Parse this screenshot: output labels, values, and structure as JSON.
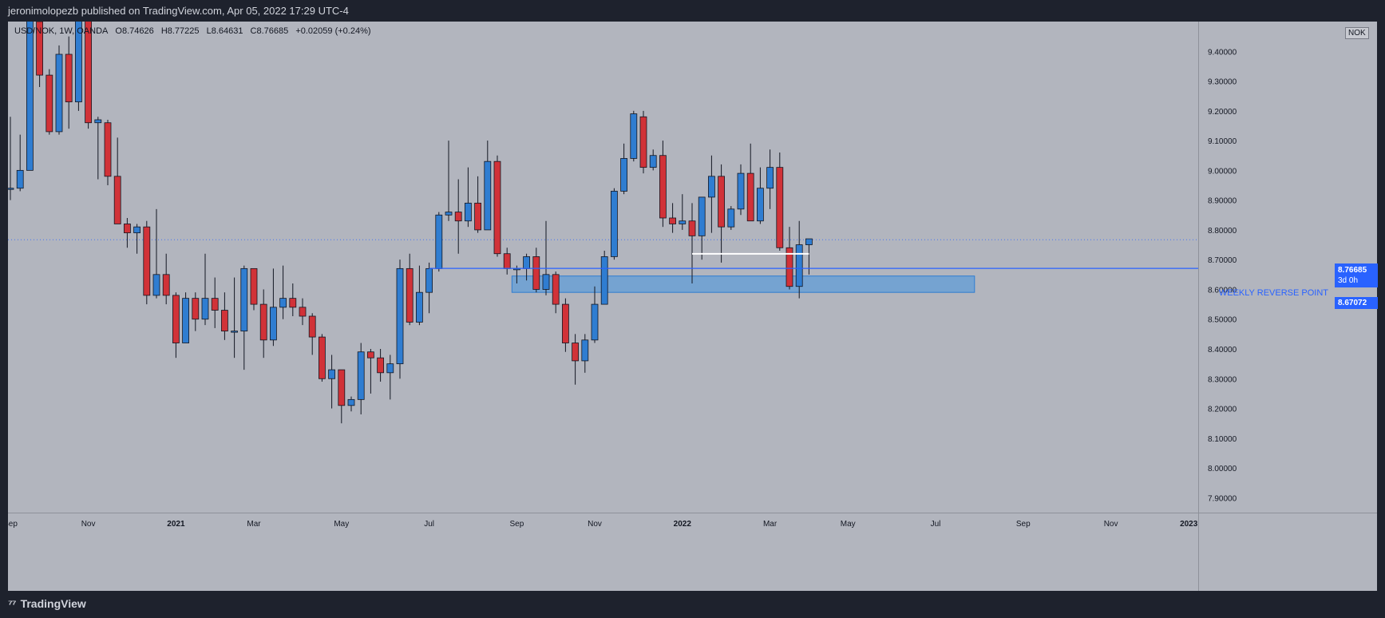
{
  "header": {
    "published_text": "jeronimolopezb published on TradingView.com, Apr 05, 2022 17:29 UTC-4"
  },
  "legend": {
    "symbol": "USD/NOK, 1W, OANDA",
    "open": "O8.74626",
    "high": "H8.77225",
    "low": "L8.64631",
    "close": "C8.76685",
    "change": "+0.02059 (+0.24%)"
  },
  "currency_badge": "NOK",
  "annotations": {
    "line_label": "WEEKLY REVERSE POINT",
    "line_price": "8.67072",
    "last_price": "8.76685",
    "countdown": "3d 0h"
  },
  "footer": {
    "brand": "TradingView"
  },
  "colors": {
    "background": "#b2b5be",
    "up": "#2f7dd1",
    "down": "#d13238",
    "line": "#2962ff",
    "zone": "#5b9bd8"
  },
  "chart_data": {
    "type": "candlestick",
    "symbol": "USD/NOK",
    "interval": "1W",
    "ylim": [
      7.85,
      9.5
    ],
    "y_ticks": [
      "9.40000",
      "9.30000",
      "9.20000",
      "9.10000",
      "9.00000",
      "8.90000",
      "8.80000",
      "8.70000",
      "8.60000",
      "8.50000",
      "8.40000",
      "8.30000",
      "8.20000",
      "8.10000",
      "8.00000",
      "7.90000"
    ],
    "x_ticks": [
      {
        "label": "Sep",
        "week": 0
      },
      {
        "label": "Nov",
        "week": 8
      },
      {
        "label": "2021",
        "week": 17
      },
      {
        "label": "Mar",
        "week": 25
      },
      {
        "label": "May",
        "week": 34
      },
      {
        "label": "Jul",
        "week": 43
      },
      {
        "label": "Sep",
        "week": 52
      },
      {
        "label": "Nov",
        "week": 60
      },
      {
        "label": "2022",
        "week": 69
      },
      {
        "label": "Mar",
        "week": 78
      },
      {
        "label": "May",
        "week": 86
      },
      {
        "label": "Jul",
        "week": 95
      },
      {
        "label": "Sep",
        "week": 104
      },
      {
        "label": "Nov",
        "week": 113
      },
      {
        "label": "2023",
        "week": 121
      }
    ],
    "candles": [
      [
        8.94,
        8.94,
        9.18,
        8.9
      ],
      [
        8.94,
        9.0,
        9.12,
        8.93
      ],
      [
        9.0,
        9.55,
        9.6,
        9.0
      ],
      [
        9.5,
        9.32,
        9.55,
        9.28
      ],
      [
        9.32,
        9.13,
        9.34,
        9.12
      ],
      [
        9.13,
        9.39,
        9.42,
        9.12
      ],
      [
        9.39,
        9.23,
        9.45,
        9.14
      ],
      [
        9.23,
        9.6,
        9.62,
        9.2
      ],
      [
        9.55,
        9.16,
        9.6,
        9.14
      ],
      [
        9.16,
        9.17,
        9.18,
        8.97
      ],
      [
        9.16,
        8.98,
        9.17,
        8.95
      ],
      [
        8.98,
        8.82,
        9.11,
        8.82
      ],
      [
        8.82,
        8.79,
        8.84,
        8.74
      ],
      [
        8.79,
        8.81,
        8.82,
        8.72
      ],
      [
        8.81,
        8.58,
        8.83,
        8.55
      ],
      [
        8.58,
        8.65,
        8.87,
        8.57
      ],
      [
        8.65,
        8.58,
        8.72,
        8.55
      ],
      [
        8.58,
        8.42,
        8.59,
        8.37
      ],
      [
        8.42,
        8.57,
        8.59,
        8.42
      ],
      [
        8.57,
        8.5,
        8.59,
        8.46
      ],
      [
        8.5,
        8.57,
        8.72,
        8.48
      ],
      [
        8.57,
        8.53,
        8.64,
        8.47
      ],
      [
        8.53,
        8.46,
        8.59,
        8.43
      ],
      [
        8.46,
        8.46,
        8.64,
        8.37
      ],
      [
        8.46,
        8.67,
        8.68,
        8.33
      ],
      [
        8.67,
        8.55,
        8.67,
        8.53
      ],
      [
        8.55,
        8.43,
        8.6,
        8.37
      ],
      [
        8.43,
        8.54,
        8.67,
        8.41
      ],
      [
        8.54,
        8.57,
        8.68,
        8.5
      ],
      [
        8.57,
        8.54,
        8.62,
        8.51
      ],
      [
        8.54,
        8.51,
        8.57,
        8.48
      ],
      [
        8.51,
        8.44,
        8.52,
        8.38
      ],
      [
        8.44,
        8.3,
        8.45,
        8.29
      ],
      [
        8.3,
        8.33,
        8.38,
        8.2
      ],
      [
        8.33,
        8.21,
        8.33,
        8.15
      ],
      [
        8.21,
        8.23,
        8.24,
        8.19
      ],
      [
        8.23,
        8.39,
        8.42,
        8.18
      ],
      [
        8.39,
        8.37,
        8.4,
        8.25
      ],
      [
        8.37,
        8.32,
        8.4,
        8.29
      ],
      [
        8.32,
        8.35,
        8.38,
        8.23
      ],
      [
        8.35,
        8.67,
        8.7,
        8.3
      ],
      [
        8.67,
        8.49,
        8.72,
        8.48
      ],
      [
        8.49,
        8.59,
        8.68,
        8.48
      ],
      [
        8.59,
        8.67,
        8.69,
        8.52
      ],
      [
        8.67,
        8.85,
        8.86,
        8.66
      ],
      [
        8.85,
        8.86,
        9.1,
        8.83
      ],
      [
        8.86,
        8.83,
        8.97,
        8.72
      ],
      [
        8.83,
        8.89,
        9.01,
        8.81
      ],
      [
        8.89,
        8.8,
        8.98,
        8.79
      ],
      [
        8.8,
        9.03,
        9.1,
        8.8
      ],
      [
        9.03,
        8.72,
        9.05,
        8.71
      ],
      [
        8.72,
        8.67,
        8.74,
        8.65
      ],
      [
        8.67,
        8.67,
        8.68,
        8.62
      ],
      [
        8.67,
        8.71,
        8.72,
        8.63
      ],
      [
        8.71,
        8.6,
        8.74,
        8.59
      ],
      [
        8.6,
        8.65,
        8.83,
        8.58
      ],
      [
        8.65,
        8.55,
        8.66,
        8.52
      ],
      [
        8.55,
        8.42,
        8.57,
        8.39
      ],
      [
        8.42,
        8.36,
        8.45,
        8.28
      ],
      [
        8.36,
        8.43,
        8.45,
        8.32
      ],
      [
        8.43,
        8.55,
        8.61,
        8.42
      ],
      [
        8.55,
        8.71,
        8.73,
        8.55
      ],
      [
        8.71,
        8.93,
        8.94,
        8.7
      ],
      [
        8.93,
        9.04,
        9.09,
        8.92
      ],
      [
        9.04,
        9.19,
        9.2,
        9.03
      ],
      [
        9.18,
        9.01,
        9.2,
        8.99
      ],
      [
        9.01,
        9.05,
        9.07,
        9.0
      ],
      [
        9.05,
        8.84,
        9.1,
        8.81
      ],
      [
        8.84,
        8.82,
        8.89,
        8.79
      ],
      [
        8.82,
        8.83,
        8.92,
        8.8
      ],
      [
        8.83,
        8.78,
        8.89,
        8.62
      ],
      [
        8.78,
        8.91,
        8.91,
        8.7
      ],
      [
        8.91,
        8.98,
        9.05,
        8.79
      ],
      [
        8.98,
        8.81,
        9.02,
        8.69
      ],
      [
        8.81,
        8.87,
        8.88,
        8.8
      ],
      [
        8.87,
        8.99,
        9.02,
        8.85
      ],
      [
        8.99,
        8.83,
        9.09,
        8.83
      ],
      [
        8.83,
        8.94,
        9.01,
        8.82
      ],
      [
        8.94,
        9.01,
        9.07,
        8.87
      ],
      [
        9.01,
        8.74,
        9.06,
        8.73
      ],
      [
        8.74,
        8.61,
        8.81,
        8.6
      ],
      [
        8.61,
        8.75,
        8.83,
        8.57
      ],
      [
        8.75,
        8.77,
        8.77,
        8.65
      ]
    ],
    "horizontal_lines": [
      {
        "name": "WEEKLY REVERSE POINT",
        "price": 8.67072,
        "from_week": 43
      },
      {
        "price": 8.7195,
        "from_week": 70,
        "to_week": 82
      }
    ],
    "zones": [
      {
        "price_top": 8.645,
        "price_bottom": 8.59,
        "from_week": 51.5,
        "to_week": 99
      }
    ],
    "last_price": 8.76685
  }
}
